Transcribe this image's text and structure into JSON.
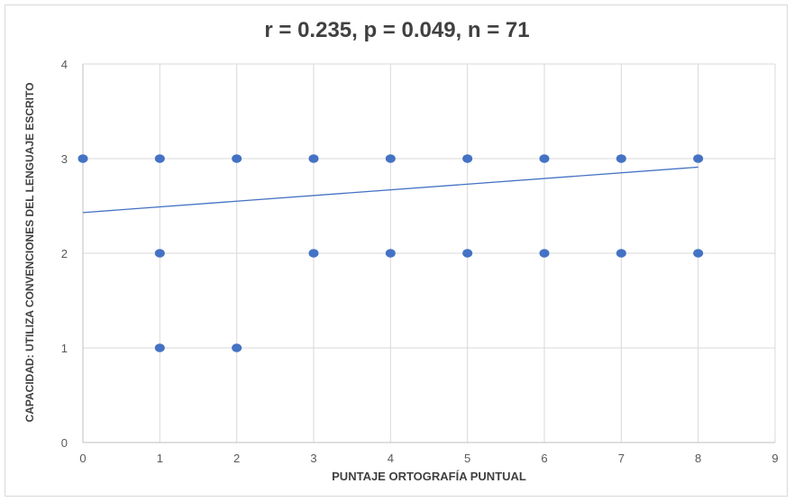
{
  "chart_data": {
    "type": "scatter",
    "title": "r = 0.235, p = 0.049, n = 71",
    "xlabel": "PUNTAJE ORTOGRAFÍA PUNTUAL",
    "ylabel": "CAPACIDAD: UTILIZA CONVENCIONES DEL LENGUAJE ESCRITO",
    "xlim": [
      0,
      9
    ],
    "ylim": [
      0,
      4
    ],
    "x_ticks": [
      0,
      1,
      2,
      3,
      4,
      5,
      6,
      7,
      8,
      9
    ],
    "y_ticks": [
      0,
      1,
      2,
      3,
      4
    ],
    "grid": true,
    "legend": "none",
    "point_color": "#4472c4",
    "trendline_color": "#4472c4",
    "points": [
      {
        "x": 0,
        "y": 3
      },
      {
        "x": 1,
        "y": 3
      },
      {
        "x": 1,
        "y": 2
      },
      {
        "x": 1,
        "y": 1
      },
      {
        "x": 2,
        "y": 3
      },
      {
        "x": 2,
        "y": 1
      },
      {
        "x": 3,
        "y": 3
      },
      {
        "x": 3,
        "y": 2
      },
      {
        "x": 4,
        "y": 3
      },
      {
        "x": 4,
        "y": 2
      },
      {
        "x": 5,
        "y": 3
      },
      {
        "x": 5,
        "y": 2
      },
      {
        "x": 6,
        "y": 3
      },
      {
        "x": 6,
        "y": 2
      },
      {
        "x": 7,
        "y": 3
      },
      {
        "x": 7,
        "y": 2
      },
      {
        "x": 8,
        "y": 3
      },
      {
        "x": 8,
        "y": 2
      }
    ],
    "trendline": {
      "x": [
        0,
        8
      ],
      "y": [
        2.43,
        2.91
      ]
    }
  }
}
